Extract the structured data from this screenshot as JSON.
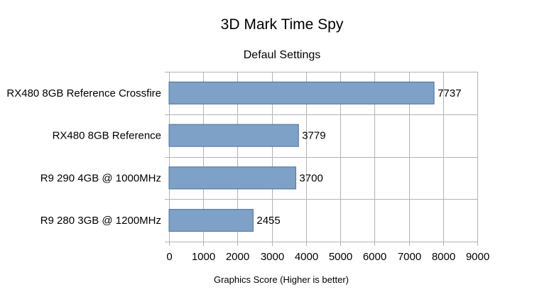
{
  "chart_data": {
    "type": "bar",
    "orientation": "horizontal",
    "title": "3D Mark Time Spy",
    "subtitle": "Defaul Settings",
    "xlabel": "Graphics Score (Higher is better)",
    "ylabel": "",
    "categories": [
      "RX480 8GB Reference Crossfire",
      "RX480 8GB Reference",
      "R9 290 4GB @ 1000MHz",
      "R9 280 3GB @ 1200MHz"
    ],
    "values": [
      7737,
      3779,
      3700,
      2455
    ],
    "xlim": [
      0,
      9000
    ],
    "xticks": [
      0,
      1000,
      2000,
      3000,
      4000,
      5000,
      6000,
      7000,
      8000,
      9000
    ],
    "grid": true,
    "legend": false,
    "colors": {
      "bar_fill": "#7ea1c8",
      "bar_stroke": "#4e6f94",
      "grid": "#b3b3b3"
    }
  }
}
